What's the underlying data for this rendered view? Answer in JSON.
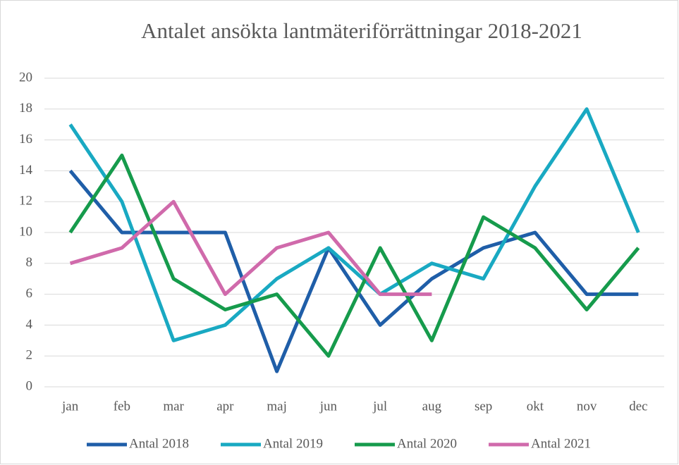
{
  "chart_data": {
    "type": "line",
    "title": "Antalet ansökta lantmäteriförrättningar 2018-2021",
    "categories": [
      "jan",
      "feb",
      "mar",
      "apr",
      "maj",
      "jun",
      "jul",
      "aug",
      "sep",
      "okt",
      "nov",
      "dec"
    ],
    "series": [
      {
        "name": "Antal 2018",
        "color": "#1f5ea8",
        "values": [
          14,
          10,
          10,
          10,
          1,
          9,
          4,
          7,
          9,
          10,
          6,
          6
        ]
      },
      {
        "name": "Antal 2019",
        "color": "#19a9c2",
        "values": [
          17,
          12,
          3,
          4,
          7,
          9,
          6,
          8,
          7,
          13,
          18,
          10
        ]
      },
      {
        "name": "Antal 2020",
        "color": "#169b4c",
        "values": [
          10,
          15,
          7,
          5,
          6,
          2,
          9,
          3,
          11,
          9,
          5,
          9
        ]
      },
      {
        "name": "Antal 2021",
        "color": "#d06aab",
        "values": [
          8,
          9,
          12,
          6,
          9,
          10,
          6,
          6,
          null,
          null,
          null,
          null
        ]
      }
    ],
    "ylim": [
      0,
      20
    ],
    "yticks": [
      0,
      2,
      4,
      6,
      8,
      10,
      12,
      14,
      16,
      18,
      20
    ],
    "grid": true,
    "legend": "bottom"
  }
}
